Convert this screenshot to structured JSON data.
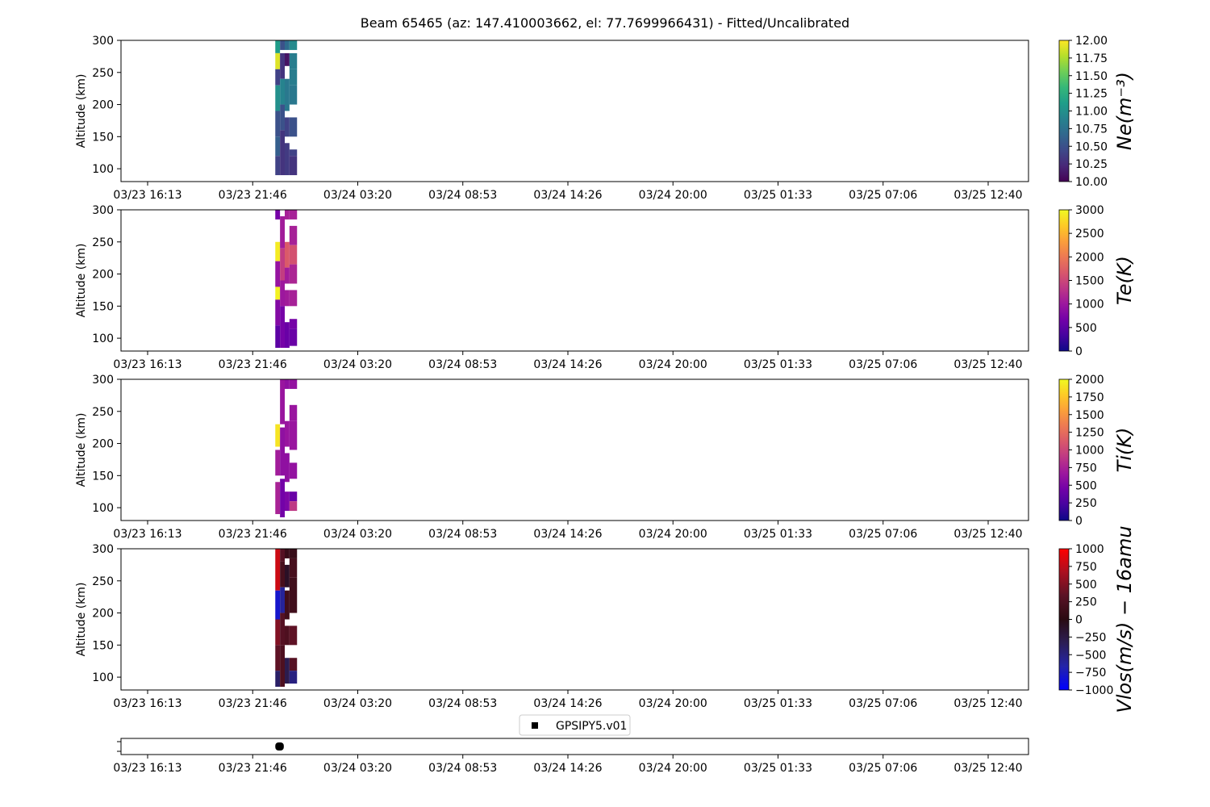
{
  "figure": {
    "title": "Beam 65465 (az: 147.410003662, el: 77.7699966431) - Fitted/Uncalibrated"
  },
  "chart_data": [
    {
      "type": "heatmap",
      "ylabel": "Altitude (km)",
      "ylim": [
        80,
        300
      ],
      "yticks": [
        "100",
        "150",
        "200",
        "250",
        "300"
      ],
      "xticks": [
        "03/23 16:13",
        "03/23 21:46",
        "03/24 03:20",
        "03/24 08:53",
        "03/24 14:26",
        "03/24 20:00",
        "03/25 01:33",
        "03/25 07:06",
        "03/25 12:40"
      ],
      "colorbar": {
        "label": "Ne(m⁻³)",
        "colormap": "viridis",
        "range": [
          10.0,
          12.0
        ],
        "ticks": [
          "10.00",
          "10.25",
          "10.50",
          "10.75",
          "11.00",
          "11.25",
          "11.50",
          "11.75",
          "12.00"
        ]
      },
      "cells": [
        {
          "x0": 6.75,
          "x1": 7.0,
          "y0": 280,
          "y1": 300,
          "v": 11.1
        },
        {
          "x0": 6.75,
          "x1": 7.0,
          "y0": 255,
          "y1": 280,
          "v": 11.9
        },
        {
          "x0": 6.75,
          "x1": 7.0,
          "y0": 230,
          "y1": 255,
          "v": 10.4
        },
        {
          "x0": 6.75,
          "x1": 7.0,
          "y0": 190,
          "y1": 230,
          "v": 11.0
        },
        {
          "x0": 6.75,
          "x1": 7.0,
          "y0": 150,
          "y1": 190,
          "v": 10.5
        },
        {
          "x0": 6.75,
          "x1": 7.0,
          "y0": 120,
          "y1": 150,
          "v": 10.6
        },
        {
          "x0": 6.75,
          "x1": 7.0,
          "y0": 90,
          "y1": 120,
          "v": 10.4
        },
        {
          "x0": 7.0,
          "x1": 7.25,
          "y0": 285,
          "y1": 300,
          "v": 10.5
        },
        {
          "x0": 7.0,
          "x1": 7.25,
          "y0": 240,
          "y1": 280,
          "v": 10.3
        },
        {
          "x0": 7.0,
          "x1": 7.25,
          "y0": 200,
          "y1": 240,
          "v": 10.9
        },
        {
          "x0": 7.0,
          "x1": 7.25,
          "y0": 160,
          "y1": 200,
          "v": 10.5
        },
        {
          "x0": 7.0,
          "x1": 7.25,
          "y0": 90,
          "y1": 160,
          "v": 10.3
        },
        {
          "x0": 7.25,
          "x1": 7.5,
          "y0": 285,
          "y1": 300,
          "v": 10.7
        },
        {
          "x0": 7.25,
          "x1": 7.5,
          "y0": 260,
          "y1": 280,
          "v": 10.1
        },
        {
          "x0": 7.25,
          "x1": 7.5,
          "y0": 190,
          "y1": 240,
          "v": 10.8
        },
        {
          "x0": 7.25,
          "x1": 7.5,
          "y0": 150,
          "y1": 180,
          "v": 10.4
        },
        {
          "x0": 7.25,
          "x1": 7.5,
          "y0": 90,
          "y1": 140,
          "v": 10.35
        },
        {
          "x0": 7.5,
          "x1": 7.9,
          "y0": 285,
          "y1": 300,
          "v": 10.95
        },
        {
          "x0": 7.5,
          "x1": 7.9,
          "y0": 255,
          "y1": 280,
          "v": 10.85
        },
        {
          "x0": 7.5,
          "x1": 7.9,
          "y0": 230,
          "y1": 255,
          "v": 10.85
        },
        {
          "x0": 7.5,
          "x1": 7.9,
          "y0": 200,
          "y1": 230,
          "v": 10.8
        },
        {
          "x0": 7.5,
          "x1": 7.9,
          "y0": 150,
          "y1": 180,
          "v": 10.5
        },
        {
          "x0": 7.5,
          "x1": 7.9,
          "y0": 120,
          "y1": 130,
          "v": 10.4
        },
        {
          "x0": 7.5,
          "x1": 7.9,
          "y0": 90,
          "y1": 120,
          "v": 10.3
        }
      ]
    },
    {
      "type": "heatmap",
      "ylabel": "Altitude (km)",
      "ylim": [
        80,
        300
      ],
      "yticks": [
        "100",
        "150",
        "200",
        "250",
        "300"
      ],
      "xticks": [
        "03/23 16:13",
        "03/23 21:46",
        "03/24 03:20",
        "03/24 08:53",
        "03/24 14:26",
        "03/24 20:00",
        "03/25 01:33",
        "03/25 07:06",
        "03/25 12:40"
      ],
      "colorbar": {
        "label": "Te(K)",
        "colormap": "plasma",
        "range": [
          0,
          3000
        ],
        "ticks": [
          "0",
          "500",
          "1000",
          "1500",
          "2000",
          "2500",
          "3000"
        ]
      },
      "cells": [
        {
          "x0": 6.75,
          "x1": 7.0,
          "y0": 285,
          "y1": 300,
          "v": 700
        },
        {
          "x0": 6.75,
          "x1": 7.0,
          "y0": 220,
          "y1": 250,
          "v": 2900
        },
        {
          "x0": 6.75,
          "x1": 7.0,
          "y0": 180,
          "y1": 220,
          "v": 950
        },
        {
          "x0": 6.75,
          "x1": 7.0,
          "y0": 160,
          "y1": 180,
          "v": 2950
        },
        {
          "x0": 6.75,
          "x1": 7.0,
          "y0": 120,
          "y1": 160,
          "v": 800
        },
        {
          "x0": 6.75,
          "x1": 7.0,
          "y0": 85,
          "y1": 120,
          "v": 500
        },
        {
          "x0": 7.0,
          "x1": 7.25,
          "y0": 240,
          "y1": 290,
          "v": 1050
        },
        {
          "x0": 7.0,
          "x1": 7.25,
          "y0": 190,
          "y1": 240,
          "v": 1400
        },
        {
          "x0": 7.0,
          "x1": 7.25,
          "y0": 150,
          "y1": 190,
          "v": 1000
        },
        {
          "x0": 7.0,
          "x1": 7.25,
          "y0": 85,
          "y1": 150,
          "v": 700
        },
        {
          "x0": 7.25,
          "x1": 7.5,
          "y0": 285,
          "y1": 300,
          "v": 1100
        },
        {
          "x0": 7.25,
          "x1": 7.5,
          "y0": 210,
          "y1": 250,
          "v": 1700
        },
        {
          "x0": 7.25,
          "x1": 7.5,
          "y0": 185,
          "y1": 210,
          "v": 1050
        },
        {
          "x0": 7.25,
          "x1": 7.5,
          "y0": 150,
          "y1": 175,
          "v": 1050
        },
        {
          "x0": 7.25,
          "x1": 7.5,
          "y0": 85,
          "y1": 125,
          "v": 600
        },
        {
          "x0": 7.5,
          "x1": 7.9,
          "y0": 285,
          "y1": 300,
          "v": 1100
        },
        {
          "x0": 7.5,
          "x1": 7.9,
          "y0": 245,
          "y1": 275,
          "v": 1100
        },
        {
          "x0": 7.5,
          "x1": 7.9,
          "y0": 215,
          "y1": 245,
          "v": 1600
        },
        {
          "x0": 7.5,
          "x1": 7.9,
          "y0": 185,
          "y1": 215,
          "v": 1150
        },
        {
          "x0": 7.5,
          "x1": 7.9,
          "y0": 150,
          "y1": 175,
          "v": 1100
        },
        {
          "x0": 7.5,
          "x1": 7.9,
          "y0": 115,
          "y1": 130,
          "v": 700
        },
        {
          "x0": 7.5,
          "x1": 7.9,
          "y0": 88,
          "y1": 115,
          "v": 600
        }
      ]
    },
    {
      "type": "heatmap",
      "ylabel": "Altitude (km)",
      "ylim": [
        80,
        300
      ],
      "yticks": [
        "100",
        "150",
        "200",
        "250",
        "300"
      ],
      "xticks": [
        "03/23 16:13",
        "03/23 21:46",
        "03/24 03:20",
        "03/24 08:53",
        "03/24 14:26",
        "03/24 20:00",
        "03/25 01:33",
        "03/25 07:06",
        "03/25 12:40"
      ],
      "colorbar": {
        "label": "Ti(K)",
        "colormap": "plasma",
        "range": [
          0,
          2000
        ],
        "ticks": [
          "0",
          "250",
          "500",
          "750",
          "1000",
          "1250",
          "1500",
          "1750",
          "2000"
        ]
      },
      "cells": [
        {
          "x0": 6.75,
          "x1": 7.0,
          "y0": 195,
          "y1": 230,
          "v": 1900
        },
        {
          "x0": 6.75,
          "x1": 7.0,
          "y0": 150,
          "y1": 190,
          "v": 700
        },
        {
          "x0": 6.75,
          "x1": 7.0,
          "y0": 90,
          "y1": 140,
          "v": 750
        },
        {
          "x0": 7.0,
          "x1": 7.25,
          "y0": 230,
          "y1": 300,
          "v": 650
        },
        {
          "x0": 7.0,
          "x1": 7.25,
          "y0": 150,
          "y1": 225,
          "v": 600
        },
        {
          "x0": 7.0,
          "x1": 7.25,
          "y0": 85,
          "y1": 145,
          "v": 450
        },
        {
          "x0": 7.25,
          "x1": 7.5,
          "y0": 285,
          "y1": 300,
          "v": 600
        },
        {
          "x0": 7.25,
          "x1": 7.5,
          "y0": 195,
          "y1": 235,
          "v": 650
        },
        {
          "x0": 7.25,
          "x1": 7.5,
          "y0": 140,
          "y1": 185,
          "v": 600
        },
        {
          "x0": 7.25,
          "x1": 7.5,
          "y0": 95,
          "y1": 125,
          "v": 500
        },
        {
          "x0": 7.5,
          "x1": 7.9,
          "y0": 285,
          "y1": 300,
          "v": 620
        },
        {
          "x0": 7.5,
          "x1": 7.9,
          "y0": 235,
          "y1": 260,
          "v": 650
        },
        {
          "x0": 7.5,
          "x1": 7.9,
          "y0": 190,
          "y1": 235,
          "v": 650
        },
        {
          "x0": 7.5,
          "x1": 7.9,
          "y0": 145,
          "y1": 170,
          "v": 620
        },
        {
          "x0": 7.5,
          "x1": 7.9,
          "y0": 110,
          "y1": 125,
          "v": 400
        },
        {
          "x0": 7.5,
          "x1": 7.9,
          "y0": 95,
          "y1": 110,
          "v": 900
        }
      ]
    },
    {
      "type": "heatmap",
      "ylabel": "Altitude (km)",
      "ylim": [
        80,
        300
      ],
      "yticks": [
        "100",
        "150",
        "200",
        "250",
        "300"
      ],
      "xticks": [
        "03/23 16:13",
        "03/23 21:46",
        "03/24 03:20",
        "03/24 08:53",
        "03/24 14:26",
        "03/24 20:00",
        "03/25 01:33",
        "03/25 07:06",
        "03/25 12:40"
      ],
      "colorbar": {
        "label": "Vlos(m/s) − 16amu",
        "colormap": "diverging-blue-black-red",
        "range": [
          -1000,
          1000
        ],
        "ticks": [
          "−1000",
          "−750",
          "−500",
          "−250",
          "0",
          "250",
          "500",
          "750",
          "1000"
        ]
      },
      "cells": [
        {
          "x0": 6.75,
          "x1": 7.0,
          "y0": 235,
          "y1": 300,
          "v": 800
        },
        {
          "x0": 6.75,
          "x1": 7.0,
          "y0": 190,
          "y1": 235,
          "v": -800
        },
        {
          "x0": 6.75,
          "x1": 7.0,
          "y0": 150,
          "y1": 190,
          "v": 500
        },
        {
          "x0": 6.75,
          "x1": 7.0,
          "y0": 110,
          "y1": 150,
          "v": 350
        },
        {
          "x0": 6.75,
          "x1": 7.0,
          "y0": 85,
          "y1": 110,
          "v": -400
        },
        {
          "x0": 7.0,
          "x1": 7.25,
          "y0": 280,
          "y1": 300,
          "v": 300
        },
        {
          "x0": 7.0,
          "x1": 7.25,
          "y0": 240,
          "y1": 280,
          "v": 200
        },
        {
          "x0": 7.0,
          "x1": 7.25,
          "y0": 200,
          "y1": 240,
          "v": -600
        },
        {
          "x0": 7.0,
          "x1": 7.25,
          "y0": 150,
          "y1": 200,
          "v": 300
        },
        {
          "x0": 7.0,
          "x1": 7.25,
          "y0": 85,
          "y1": 150,
          "v": 250
        },
        {
          "x0": 7.25,
          "x1": 7.5,
          "y0": 285,
          "y1": 300,
          "v": 100
        },
        {
          "x0": 7.25,
          "x1": 7.5,
          "y0": 240,
          "y1": 275,
          "v": -100
        },
        {
          "x0": 7.25,
          "x1": 7.5,
          "y0": 190,
          "y1": 235,
          "v": 150
        },
        {
          "x0": 7.25,
          "x1": 7.5,
          "y0": 150,
          "y1": 180,
          "v": 250
        },
        {
          "x0": 7.25,
          "x1": 7.5,
          "y0": 90,
          "y1": 130,
          "v": -300
        },
        {
          "x0": 7.5,
          "x1": 7.9,
          "y0": 285,
          "y1": 300,
          "v": 100
        },
        {
          "x0": 7.5,
          "x1": 7.9,
          "y0": 255,
          "y1": 285,
          "v": 200
        },
        {
          "x0": 7.5,
          "x1": 7.9,
          "y0": 200,
          "y1": 255,
          "v": 150
        },
        {
          "x0": 7.5,
          "x1": 7.9,
          "y0": 150,
          "y1": 180,
          "v": 350
        },
        {
          "x0": 7.5,
          "x1": 7.9,
          "y0": 110,
          "y1": 130,
          "v": 300
        },
        {
          "x0": 7.5,
          "x1": 7.9,
          "y0": 90,
          "y1": 110,
          "v": -500
        }
      ]
    },
    {
      "type": "scatter",
      "legend": [
        "GPSIPY5.v01"
      ],
      "legend_placement": "top-center",
      "xticks": [
        "03/23 16:13",
        "03/23 21:46",
        "03/24 03:20",
        "03/24 08:53",
        "03/24 14:26",
        "03/24 20:00",
        "03/25 01:33",
        "03/25 07:06",
        "03/25 12:40"
      ],
      "series": [
        {
          "name": "GPSIPY5.v01",
          "x_hours_range": [
            6.75,
            7.2
          ],
          "marker": "square",
          "color": "#000000"
        }
      ]
    }
  ]
}
